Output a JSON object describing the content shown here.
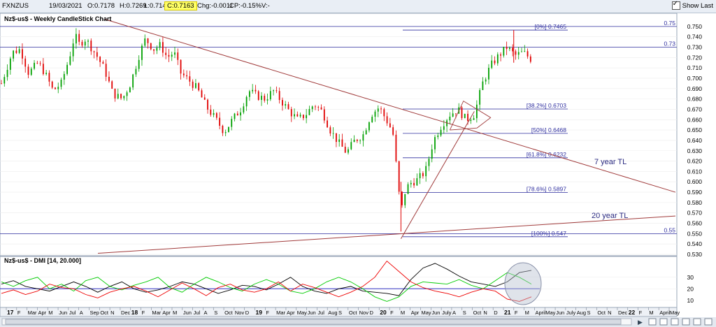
{
  "topbar": {
    "symbol": "FXNZUS",
    "date": "19/03/2021",
    "open": "O:0.7178",
    "high": "H:0.7269",
    "low": "L:0.714",
    "close": "C:0.7163",
    "change": "Chg:-0.0011",
    "change_pct": "CP:-0.15%",
    "volume": "V:-",
    "show_last_label": "Show Last",
    "show_last_checked": true
  },
  "chart_data": [
    {
      "type": "candlestick",
      "title": "Nz$-us$ - Weekly CandleStick Chart",
      "ylim": [
        0.53,
        0.758
      ],
      "y_ticks": [
        "0.530",
        "0.540",
        "0.550",
        "0.560",
        "0.570",
        "0.580",
        "0.590",
        "0.600",
        "0.610",
        "0.620",
        "0.630",
        "0.640",
        "0.650",
        "0.660",
        "0.670",
        "0.680",
        "0.690",
        "0.700",
        "0.710",
        "0.720",
        "0.730",
        "0.740",
        "0.750"
      ],
      "close_path": [
        [
          0,
          0.695
        ],
        [
          8,
          0.725
        ],
        [
          14,
          0.728
        ],
        [
          20,
          0.705
        ],
        [
          27,
          0.715
        ],
        [
          32,
          0.705
        ],
        [
          38,
          0.688
        ],
        [
          44,
          0.695
        ],
        [
          50,
          0.72
        ],
        [
          54,
          0.742
        ],
        [
          57,
          0.733
        ],
        [
          62,
          0.738
        ],
        [
          70,
          0.722
        ],
        [
          76,
          0.708
        ],
        [
          82,
          0.685
        ],
        [
          89,
          0.68
        ],
        [
          95,
          0.695
        ],
        [
          102,
          0.725
        ],
        [
          106,
          0.738
        ],
        [
          112,
          0.728
        ],
        [
          117,
          0.732
        ],
        [
          122,
          0.72
        ],
        [
          127,
          0.725
        ],
        [
          132,
          0.705
        ],
        [
          138,
          0.698
        ],
        [
          144,
          0.69
        ],
        [
          151,
          0.672
        ],
        [
          158,
          0.66
        ],
        [
          164,
          0.648
        ],
        [
          170,
          0.66
        ],
        [
          176,
          0.67
        ],
        [
          182,
          0.688
        ],
        [
          188,
          0.683
        ],
        [
          194,
          0.68
        ],
        [
          200,
          0.688
        ],
        [
          206,
          0.678
        ],
        [
          212,
          0.668
        ],
        [
          218,
          0.66
        ],
        [
          224,
          0.665
        ],
        [
          230,
          0.675
        ],
        [
          236,
          0.668
        ],
        [
          242,
          0.65
        ],
        [
          248,
          0.638
        ],
        [
          254,
          0.628
        ],
        [
          260,
          0.64
        ],
        [
          266,
          0.645
        ],
        [
          272,
          0.665
        ],
        [
          278,
          0.672
        ],
        [
          284,
          0.658
        ],
        [
          288,
          0.648
        ],
        [
          291,
          0.61
        ],
        [
          294,
          0.57
        ],
        [
          297,
          0.59
        ],
        [
          300,
          0.598
        ],
        [
          306,
          0.602
        ],
        [
          312,
          0.61
        ],
        [
          318,
          0.64
        ],
        [
          324,
          0.655
        ],
        [
          330,
          0.665
        ],
        [
          336,
          0.67
        ],
        [
          342,
          0.66
        ],
        [
          348,
          0.665
        ],
        [
          354,
          0.695
        ],
        [
          360,
          0.712
        ],
        [
          366,
          0.722
        ],
        [
          372,
          0.73
        ],
        [
          378,
          0.722
        ],
        [
          384,
          0.725
        ],
        [
          390,
          0.718
        ]
      ],
      "lows": [
        0.684,
        0.686,
        0.679,
        0.683,
        0.641,
        0.622,
        0.556,
        0.592,
        0.652,
        0.681
      ],
      "fib_levels": [
        {
          "label": "[0%] 0.7465",
          "value": 0.7465
        },
        {
          "label": "[38.2%] 0.6703",
          "value": 0.6703
        },
        {
          "label": "[50%] 0.6468",
          "value": 0.6468
        },
        {
          "label": "[61.8%] 0.6232",
          "value": 0.6232
        },
        {
          "label": "[78.6%] 0.5897",
          "value": 0.5897
        },
        {
          "label": "[100%] 0.547",
          "value": 0.547
        }
      ],
      "horizontal_lines": [
        {
          "label": "0.75",
          "value": 0.75
        },
        {
          "label": "0.73",
          "value": 0.73
        },
        {
          "label": "0.55",
          "value": 0.55
        }
      ],
      "trendlines": [
        {
          "name": "7 year TL",
          "label": "7 year TL"
        },
        {
          "name": "20 year TL",
          "label": "20 year TL"
        }
      ],
      "annotations": [
        "7 year TL",
        "20 year TL"
      ],
      "colors": {
        "up": "#00a000",
        "down": "#e00000",
        "fib": "#3030a0",
        "trend": "#a03a3a",
        "grid": "#dcdcdc"
      }
    },
    {
      "type": "line",
      "title": "Nz$-us$ - DMI [14, 20.000]",
      "ylim": [
        5,
        45
      ],
      "y_ticks": [
        "10",
        "20",
        "30"
      ],
      "reference_line": 20,
      "series": [
        {
          "color": "#000000",
          "values": [
            24,
            27,
            22,
            20,
            18,
            22,
            26,
            22,
            17,
            22,
            26,
            20,
            17,
            19,
            22,
            26,
            24,
            20,
            16,
            19,
            23,
            22,
            19,
            24,
            30,
            22,
            18,
            16,
            20,
            22,
            18,
            17,
            16,
            14,
            28,
            38,
            42,
            37,
            31,
            26,
            24,
            22,
            26,
            34,
            36
          ]
        },
        {
          "color": "#00cc00",
          "values": [
            26,
            22,
            27,
            30,
            20,
            24,
            18,
            27,
            30,
            22,
            19,
            23,
            26,
            30,
            21,
            17,
            24,
            30,
            26,
            21,
            18,
            24,
            28,
            24,
            18,
            16,
            20,
            26,
            30,
            26,
            20,
            13,
            9,
            13,
            22,
            26,
            25,
            24,
            28,
            23,
            20,
            27,
            34,
            30,
            24
          ]
        },
        {
          "color": "#ee0000",
          "values": [
            16,
            19,
            15,
            18,
            24,
            21,
            20,
            15,
            12,
            17,
            20,
            22,
            18,
            13,
            19,
            25,
            20,
            14,
            21,
            24,
            19,
            17,
            20,
            26,
            18,
            24,
            21,
            17,
            13,
            17,
            22,
            30,
            44,
            35,
            26,
            21,
            18,
            16,
            13,
            17,
            20,
            18,
            11,
            9,
            13
          ]
        }
      ]
    }
  ],
  "x_axis": {
    "labels": [
      "17",
      "F",
      "Mar",
      "Apr",
      "M",
      "Jun",
      "Jul",
      "A",
      "Sep",
      "Oct",
      "N",
      "Dec",
      "18",
      "F",
      "Mar",
      "Apr",
      "M",
      "Jun",
      "Jul",
      "A",
      "S",
      "Oct",
      "Nov",
      "D",
      "19",
      "F",
      "Mar",
      "Apr",
      "May",
      "Jun",
      "Jul",
      "Aug",
      "S",
      "Oct",
      "Nov",
      "D",
      "20",
      "F",
      "M",
      "Apr",
      "May",
      "Jun",
      "July",
      "A",
      "S",
      "Oct",
      "N",
      "D",
      "21",
      "F",
      "M",
      "April",
      "May",
      "Jun",
      "July",
      "Aug",
      "S",
      "Oct",
      "N",
      "Dec",
      "22",
      "F",
      "M",
      "April",
      "May"
    ],
    "bold_labels": [
      "17",
      "18",
      "19",
      "20",
      "21",
      "22"
    ]
  }
}
